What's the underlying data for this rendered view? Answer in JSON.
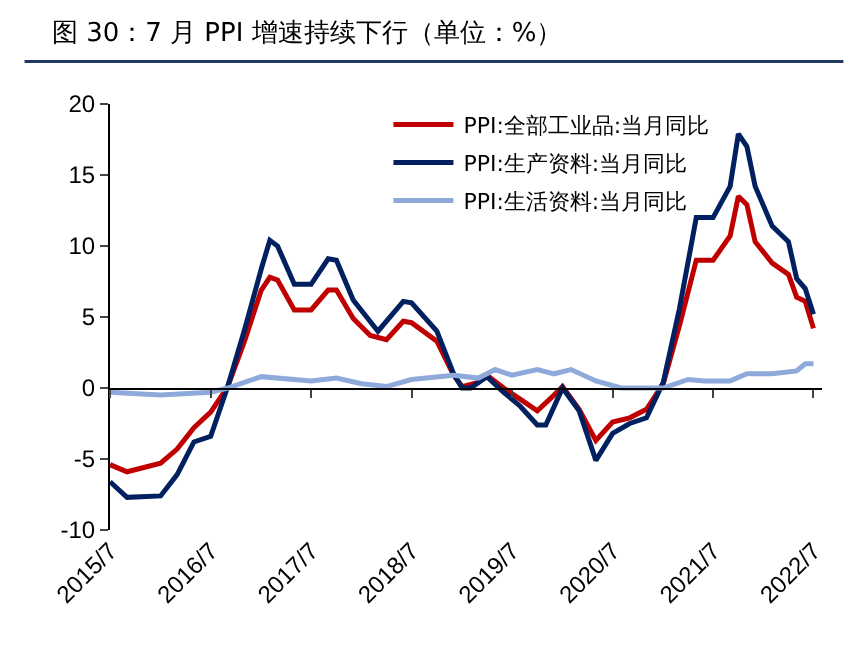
{
  "chart_data": {
    "type": "line",
    "title": "图 30：7 月 PPI 增速持续下行（单位：%）",
    "xlim": [
      "2015-07",
      "2022-08"
    ],
    "xticks": [
      {
        "value": "2015-07",
        "label": "2015/7"
      },
      {
        "value": "2016-07",
        "label": "2016/7"
      },
      {
        "value": "2017-07",
        "label": "2017/7"
      },
      {
        "value": "2018-07",
        "label": "2018/7"
      },
      {
        "value": "2019-07",
        "label": "2019/7"
      },
      {
        "value": "2020-07",
        "label": "2020/7"
      },
      {
        "value": "2021-07",
        "label": "2021/7"
      },
      {
        "value": "2022-07",
        "label": "2022/7"
      }
    ],
    "ylim": [
      -10,
      20
    ],
    "yticks": [
      -10,
      -5,
      0,
      5,
      10,
      15,
      20
    ],
    "grid": false,
    "ref_lines": [
      {
        "axis": "y",
        "value": 0,
        "color": "#000000"
      }
    ],
    "legend": "top",
    "marker": "none",
    "line_style": "solid",
    "series": [
      {
        "name": "PPI:全部工业品:当月同比",
        "color": "#c00000",
        "x": [
          "2015-07",
          "2015-09",
          "2016-01",
          "2016-03",
          "2016-05",
          "2016-07",
          "2016-09",
          "2016-11",
          "2017-01",
          "2017-02",
          "2017-03",
          "2017-05",
          "2017-07",
          "2017-09",
          "2017-10",
          "2017-12",
          "2018-02",
          "2018-04",
          "2018-06",
          "2018-07",
          "2018-10",
          "2018-12",
          "2019-01",
          "2019-03",
          "2019-04",
          "2019-06",
          "2019-08",
          "2019-10",
          "2019-12",
          "2020-01",
          "2020-03",
          "2020-05",
          "2020-07",
          "2020-09",
          "2020-11",
          "2021-01",
          "2021-03",
          "2021-05",
          "2021-07",
          "2021-09",
          "2021-10",
          "2021-11",
          "2021-12",
          "2022-02",
          "2022-04",
          "2022-05",
          "2022-06",
          "2022-07"
        ],
        "values": [
          -5.4,
          -5.9,
          -5.3,
          -4.3,
          -2.8,
          -1.7,
          0.1,
          3.3,
          6.9,
          7.8,
          7.6,
          5.5,
          5.5,
          6.9,
          6.9,
          4.9,
          3.7,
          3.4,
          4.7,
          4.6,
          3.3,
          0.9,
          0.1,
          0.4,
          0.9,
          0,
          -0.8,
          -1.6,
          -0.5,
          0.1,
          -1.5,
          -3.7,
          -2.4,
          -2.1,
          -1.5,
          0.3,
          4.4,
          9.0,
          9.0,
          10.7,
          13.5,
          12.9,
          10.3,
          8.8,
          8.0,
          6.4,
          6.1,
          4.2
        ]
      },
      {
        "name": "PPI:生产资料:当月同比",
        "color": "#002060",
        "x": [
          "2015-07",
          "2015-09",
          "2016-01",
          "2016-03",
          "2016-05",
          "2016-07",
          "2016-09",
          "2016-11",
          "2017-01",
          "2017-02",
          "2017-03",
          "2017-05",
          "2017-07",
          "2017-09",
          "2017-10",
          "2017-12",
          "2018-03",
          "2018-06",
          "2018-07",
          "2018-10",
          "2018-12",
          "2019-01",
          "2019-02",
          "2019-04",
          "2019-06",
          "2019-08",
          "2019-10",
          "2019-11",
          "2020-01",
          "2020-03",
          "2020-05",
          "2020-07",
          "2020-09",
          "2020-11",
          "2021-01",
          "2021-03",
          "2021-05",
          "2021-07",
          "2021-09",
          "2021-10",
          "2021-11",
          "2021-12",
          "2022-02",
          "2022-04",
          "2022-05",
          "2022-06",
          "2022-07"
        ],
        "values": [
          -6.6,
          -7.7,
          -7.6,
          -6.1,
          -3.8,
          -3.4,
          0.1,
          4.1,
          8.4,
          10.4,
          10.0,
          7.3,
          7.3,
          9.1,
          9.0,
          6.2,
          4.0,
          6.1,
          6.0,
          4.0,
          1.0,
          0.0,
          0.0,
          0.8,
          -0.3,
          -1.3,
          -2.6,
          -2.6,
          0.0,
          -1.6,
          -5.1,
          -3.2,
          -2.5,
          -2.1,
          0.4,
          5.6,
          12.0,
          12.0,
          14.2,
          17.9,
          17.0,
          14.2,
          11.4,
          10.3,
          7.7,
          7.0,
          5.2
        ]
      },
      {
        "name": "PPI:生活资料:当月同比",
        "color": "#8eaadb",
        "x": [
          "2015-07",
          "2016-01",
          "2016-07",
          "2016-09",
          "2017-01",
          "2017-07",
          "2017-10",
          "2018-01",
          "2018-04",
          "2018-07",
          "2018-12",
          "2019-03",
          "2019-05",
          "2019-07",
          "2019-10",
          "2019-12",
          "2020-02",
          "2020-05",
          "2020-08",
          "2020-11",
          "2021-01",
          "2021-04",
          "2021-06",
          "2021-09",
          "2021-11",
          "2022-02",
          "2022-05",
          "2022-06",
          "2022-07"
        ],
        "values": [
          -0.3,
          -0.5,
          -0.3,
          0,
          0.8,
          0.5,
          0.7,
          0.3,
          0.1,
          0.6,
          0.9,
          0.7,
          1.3,
          0.9,
          1.3,
          1.0,
          1.3,
          0.5,
          0,
          0.0,
          0.0,
          0.6,
          0.5,
          0.5,
          1.0,
          1.0,
          1.2,
          1.7,
          1.7
        ]
      }
    ]
  }
}
